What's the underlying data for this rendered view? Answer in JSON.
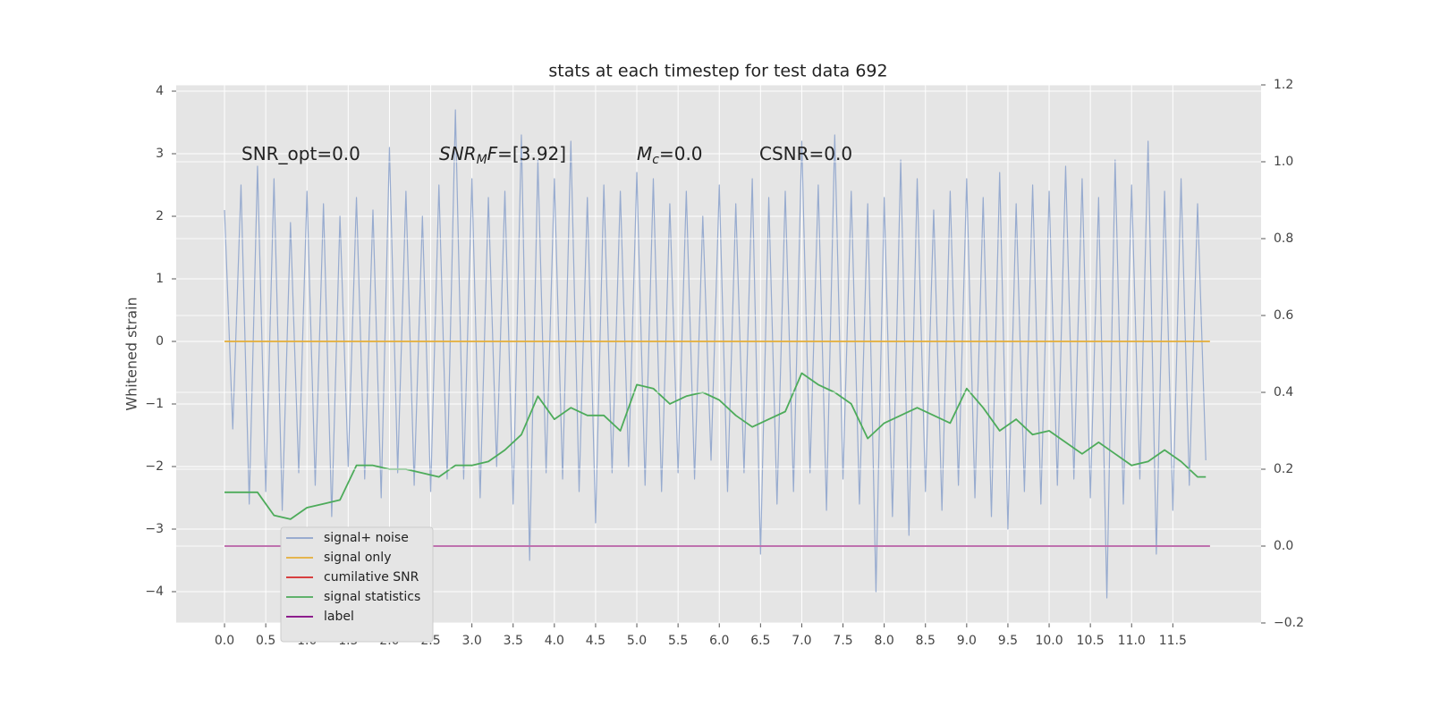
{
  "chart_data": {
    "type": "line",
    "title": "stats at each timestep for test data 692",
    "ylabel": "Whitened strain",
    "annotations": [
      {
        "parts": [
          {
            "text": "SNR_opt=0.0"
          }
        ]
      },
      {
        "parts": [
          {
            "text": "SNR",
            "style": "italic"
          },
          {
            "text": "M",
            "style": "italic-sub"
          },
          {
            "text": "F",
            "style": "italic"
          },
          {
            "text": "=[3.92]"
          }
        ]
      },
      {
        "parts": [
          {
            "text": "M",
            "style": "italic"
          },
          {
            "text": "c",
            "style": "italic-sub"
          },
          {
            "text": "=0.0"
          }
        ]
      },
      {
        "parts": [
          {
            "text": "CSNR=0.0"
          }
        ]
      }
    ],
    "xlim": [
      -0.586,
      12.57
    ],
    "ylim": [
      -4.5,
      4.1
    ],
    "y2lim": [
      -0.2,
      1.2
    ],
    "xticks": [
      {
        "value": 0,
        "label": "0.0"
      },
      0.5,
      {
        "value": 1,
        "label": "1.0"
      },
      1.5,
      {
        "value": 2,
        "label": "2.0"
      },
      2.5,
      {
        "value": 3,
        "label": "3.0"
      },
      3.5,
      {
        "value": 4,
        "label": "4.0"
      },
      4.5,
      {
        "value": 5,
        "label": "5.0"
      },
      5.5,
      {
        "value": 6,
        "label": "6.0"
      },
      6.5,
      {
        "value": 7,
        "label": "7.0"
      },
      7.5,
      {
        "value": 8,
        "label": "8.0"
      },
      8.5,
      {
        "value": 9,
        "label": "9.0"
      },
      9.5,
      {
        "value": 10,
        "label": "10.0"
      },
      10.5,
      {
        "value": 11,
        "label": "11.0"
      },
      11.5
    ],
    "yticks": [
      {
        "value": -4,
        "label": "−4"
      },
      {
        "value": -3,
        "label": "−3"
      },
      {
        "value": -2,
        "label": "−2"
      },
      {
        "value": -1,
        "label": "−1"
      },
      0,
      1,
      2,
      3,
      4
    ],
    "y2ticks": [
      {
        "value": -0.2,
        "label": "−0.2"
      },
      {
        "value": 0,
        "label": "0.0"
      },
      0.2,
      0.4,
      0.6,
      0.8,
      {
        "value": 1,
        "label": "1.0"
      },
      1.2
    ],
    "grid": true,
    "legend": "lower left",
    "series": [
      {
        "name": "signal+ noise",
        "color": "#8ea4cc",
        "x": [
          0,
          0.1,
          0.2,
          0.3,
          0.4,
          0.5,
          0.6,
          0.7,
          0.8,
          0.9,
          1,
          1.1,
          1.2,
          1.3,
          1.4,
          1.5,
          1.6,
          1.7,
          1.8,
          1.9,
          2,
          2.1,
          2.2,
          2.3,
          2.4,
          2.5,
          2.6,
          2.7,
          2.8,
          2.9,
          3,
          3.1,
          3.2,
          3.3,
          3.4,
          3.5,
          3.6,
          3.7,
          3.8,
          3.9,
          4,
          4.1,
          4.2,
          4.3,
          4.4,
          4.5,
          4.6,
          4.7,
          4.8,
          4.9,
          5,
          5.1,
          5.2,
          5.3,
          5.4,
          5.5,
          5.6,
          5.7,
          5.8,
          5.9,
          6,
          6.1,
          6.2,
          6.3,
          6.4,
          6.5,
          6.6,
          6.7,
          6.8,
          6.9,
          7,
          7.1,
          7.2,
          7.3,
          7.4,
          7.5,
          7.6,
          7.7,
          7.8,
          7.9,
          8,
          8.1,
          8.2,
          8.3,
          8.4,
          8.5,
          8.6,
          8.7,
          8.8,
          8.9,
          9,
          9.1,
          9.2,
          9.3,
          9.4,
          9.5,
          9.6,
          9.7,
          9.8,
          9.9,
          10,
          10.1,
          10.2,
          10.3,
          10.4,
          10.5,
          10.6,
          10.7,
          10.8,
          10.9,
          11,
          11.1,
          11.2,
          11.3,
          11.4,
          11.5,
          11.6,
          11.7,
          11.8,
          11.9
        ],
        "values": [
          2.1,
          -1.4,
          2.5,
          -2.6,
          2.8,
          -2.4,
          2.6,
          -2.7,
          1.9,
          -2.1,
          2.4,
          -2.3,
          2.2,
          -2.8,
          2.0,
          -2.0,
          2.3,
          -2.2,
          2.1,
          -2.5,
          3.1,
          -2.1,
          2.4,
          -2.3,
          2.0,
          -2.4,
          2.5,
          -2.2,
          3.7,
          -2.2,
          2.6,
          -2.5,
          2.3,
          -2.0,
          2.4,
          -2.6,
          3.3,
          -3.5,
          2.9,
          -2.1,
          2.6,
          -2.2,
          3.2,
          -2.4,
          2.3,
          -2.9,
          2.5,
          -2.1,
          2.4,
          -2.0,
          2.7,
          -2.3,
          2.6,
          -2.4,
          2.2,
          -2.1,
          2.4,
          -2.2,
          2.0,
          -1.9,
          2.5,
          -2.4,
          2.2,
          -2.1,
          2.6,
          -3.4,
          2.3,
          -2.6,
          2.4,
          -2.4,
          3.2,
          -2.1,
          2.5,
          -2.7,
          3.3,
          -2.2,
          2.4,
          -2.6,
          2.2,
          -4.0,
          2.3,
          -2.8,
          2.9,
          -3.1,
          2.6,
          -2.4,
          2.1,
          -2.7,
          2.4,
          -2.3,
          2.6,
          -2.5,
          2.3,
          -2.8,
          2.7,
          -3.0,
          2.2,
          -2.4,
          2.5,
          -2.6,
          2.4,
          -2.3,
          2.8,
          -2.2,
          2.6,
          -2.5,
          2.3,
          -4.1,
          2.9,
          -2.6,
          2.5,
          -2.2,
          3.2,
          -3.4,
          2.4,
          -2.7,
          2.6,
          -2.3,
          2.2,
          -1.9
        ]
      },
      {
        "name": "signal only",
        "color": "#e5ae38",
        "x": [
          0,
          11.95
        ],
        "values": [
          0,
          0
        ]
      },
      {
        "name": "cumilative SNR",
        "color": "#d62728",
        "axis": "y2",
        "x": [
          0,
          11.95
        ],
        "values": [
          0,
          0
        ]
      },
      {
        "name": "signal statistics",
        "color": "#4dab5a",
        "axis": "y2",
        "x": [
          0,
          0.2,
          0.4,
          0.6,
          0.8,
          1,
          1.2,
          1.4,
          1.6,
          1.8,
          2,
          2.2,
          2.4,
          2.6,
          2.8,
          3,
          3.2,
          3.4,
          3.6,
          3.8,
          4,
          4.2,
          4.4,
          4.6,
          4.8,
          5,
          5.2,
          5.4,
          5.6,
          5.8,
          6,
          6.2,
          6.4,
          6.6,
          6.8,
          7,
          7.2,
          7.4,
          7.6,
          7.8,
          8,
          8.2,
          8.4,
          8.6,
          8.8,
          9,
          9.2,
          9.4,
          9.6,
          9.8,
          10,
          10.2,
          10.4,
          10.6,
          10.8,
          11,
          11.2,
          11.4,
          11.6,
          11.8,
          11.9
        ],
        "values": [
          0.14,
          0.14,
          0.14,
          0.08,
          0.07,
          0.1,
          0.11,
          0.12,
          0.21,
          0.21,
          0.2,
          0.2,
          0.19,
          0.18,
          0.21,
          0.21,
          0.22,
          0.25,
          0.29,
          0.39,
          0.33,
          0.36,
          0.34,
          0.34,
          0.3,
          0.42,
          0.41,
          0.37,
          0.39,
          0.4,
          0.38,
          0.34,
          0.31,
          0.33,
          0.35,
          0.45,
          0.42,
          0.4,
          0.37,
          0.28,
          0.32,
          0.34,
          0.36,
          0.34,
          0.32,
          0.41,
          0.36,
          0.3,
          0.33,
          0.29,
          0.3,
          0.27,
          0.24,
          0.27,
          0.24,
          0.21,
          0.22,
          0.25,
          0.22,
          0.18,
          0.18
        ]
      },
      {
        "name": "label",
        "color": "#800080",
        "axis": "y2",
        "x": [
          0,
          11.95
        ],
        "values": [
          0,
          0
        ]
      }
    ]
  }
}
